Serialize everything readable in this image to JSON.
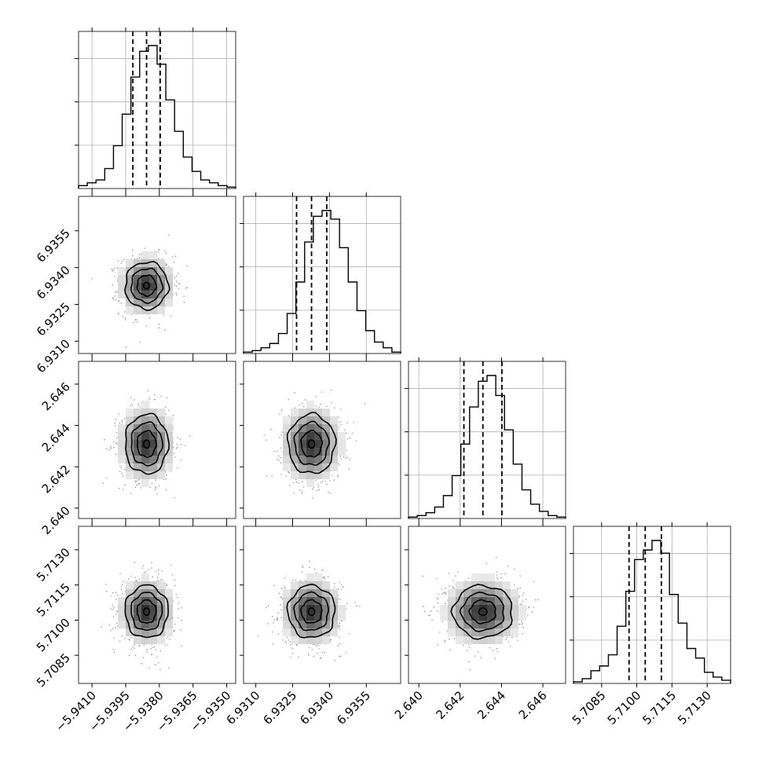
{
  "chart_data": {
    "type": "corner",
    "title": "",
    "parameters": [
      {
        "range": [
          -5.9416,
          -5.9346
        ],
        "ticks": [
          "−5.9410",
          "−5.9395",
          "−5.9380",
          "−5.9365",
          "−5.9350"
        ],
        "tick_values": [
          -5.941,
          -5.9395,
          -5.938,
          -5.9365,
          -5.935
        ],
        "quantiles": [
          -5.93918,
          -5.93857,
          -5.93796
        ],
        "mean": -5.93857,
        "sd": 0.0006
      },
      {
        "range": [
          6.9305,
          6.9369
        ],
        "ticks": [
          "6.9310",
          "6.9325",
          "6.9340",
          "6.9355"
        ],
        "tick_values": [
          6.931,
          6.9325,
          6.934,
          6.9355
        ],
        "quantiles": [
          6.93266,
          6.93327,
          6.93389
        ],
        "mean": 6.93327,
        "sd": 0.0006
      },
      {
        "range": [
          2.6395,
          2.6471
        ],
        "ticks": [
          "2.640",
          "2.642",
          "2.644",
          "2.646"
        ],
        "tick_values": [
          2.64,
          2.642,
          2.644,
          2.646
        ],
        "quantiles": [
          2.64218,
          2.6431,
          2.64402
        ],
        "mean": 2.6431,
        "sd": 0.0009
      },
      {
        "range": [
          5.7073,
          5.714
        ],
        "ticks": [
          "5.7085",
          "5.7100",
          "5.7115",
          "5.7130"
        ],
        "tick_values": [
          5.7085,
          5.71,
          5.7115,
          5.713
        ],
        "quantiles": [
          5.70967,
          5.71036,
          5.71105
        ],
        "mean": 5.71036,
        "sd": 0.0007
      }
    ],
    "histogram_counts": [
      [
        2,
        4,
        6,
        14,
        30,
        52,
        78,
        96,
        100,
        87,
        62,
        40,
        22,
        12,
        6,
        4,
        2,
        1
      ],
      [
        1,
        2,
        4,
        7,
        14,
        28,
        50,
        78,
        96,
        100,
        94,
        74,
        50,
        30,
        16,
        8,
        4,
        1
      ],
      [
        1,
        2,
        4,
        8,
        16,
        30,
        52,
        78,
        96,
        100,
        86,
        62,
        38,
        20,
        10,
        5,
        2,
        1
      ],
      [
        1,
        3,
        8,
        11,
        18,
        36,
        58,
        78,
        84,
        90,
        82,
        56,
        38,
        22,
        16,
        7,
        4,
        2
      ]
    ],
    "grid": true,
    "legend": "none"
  }
}
